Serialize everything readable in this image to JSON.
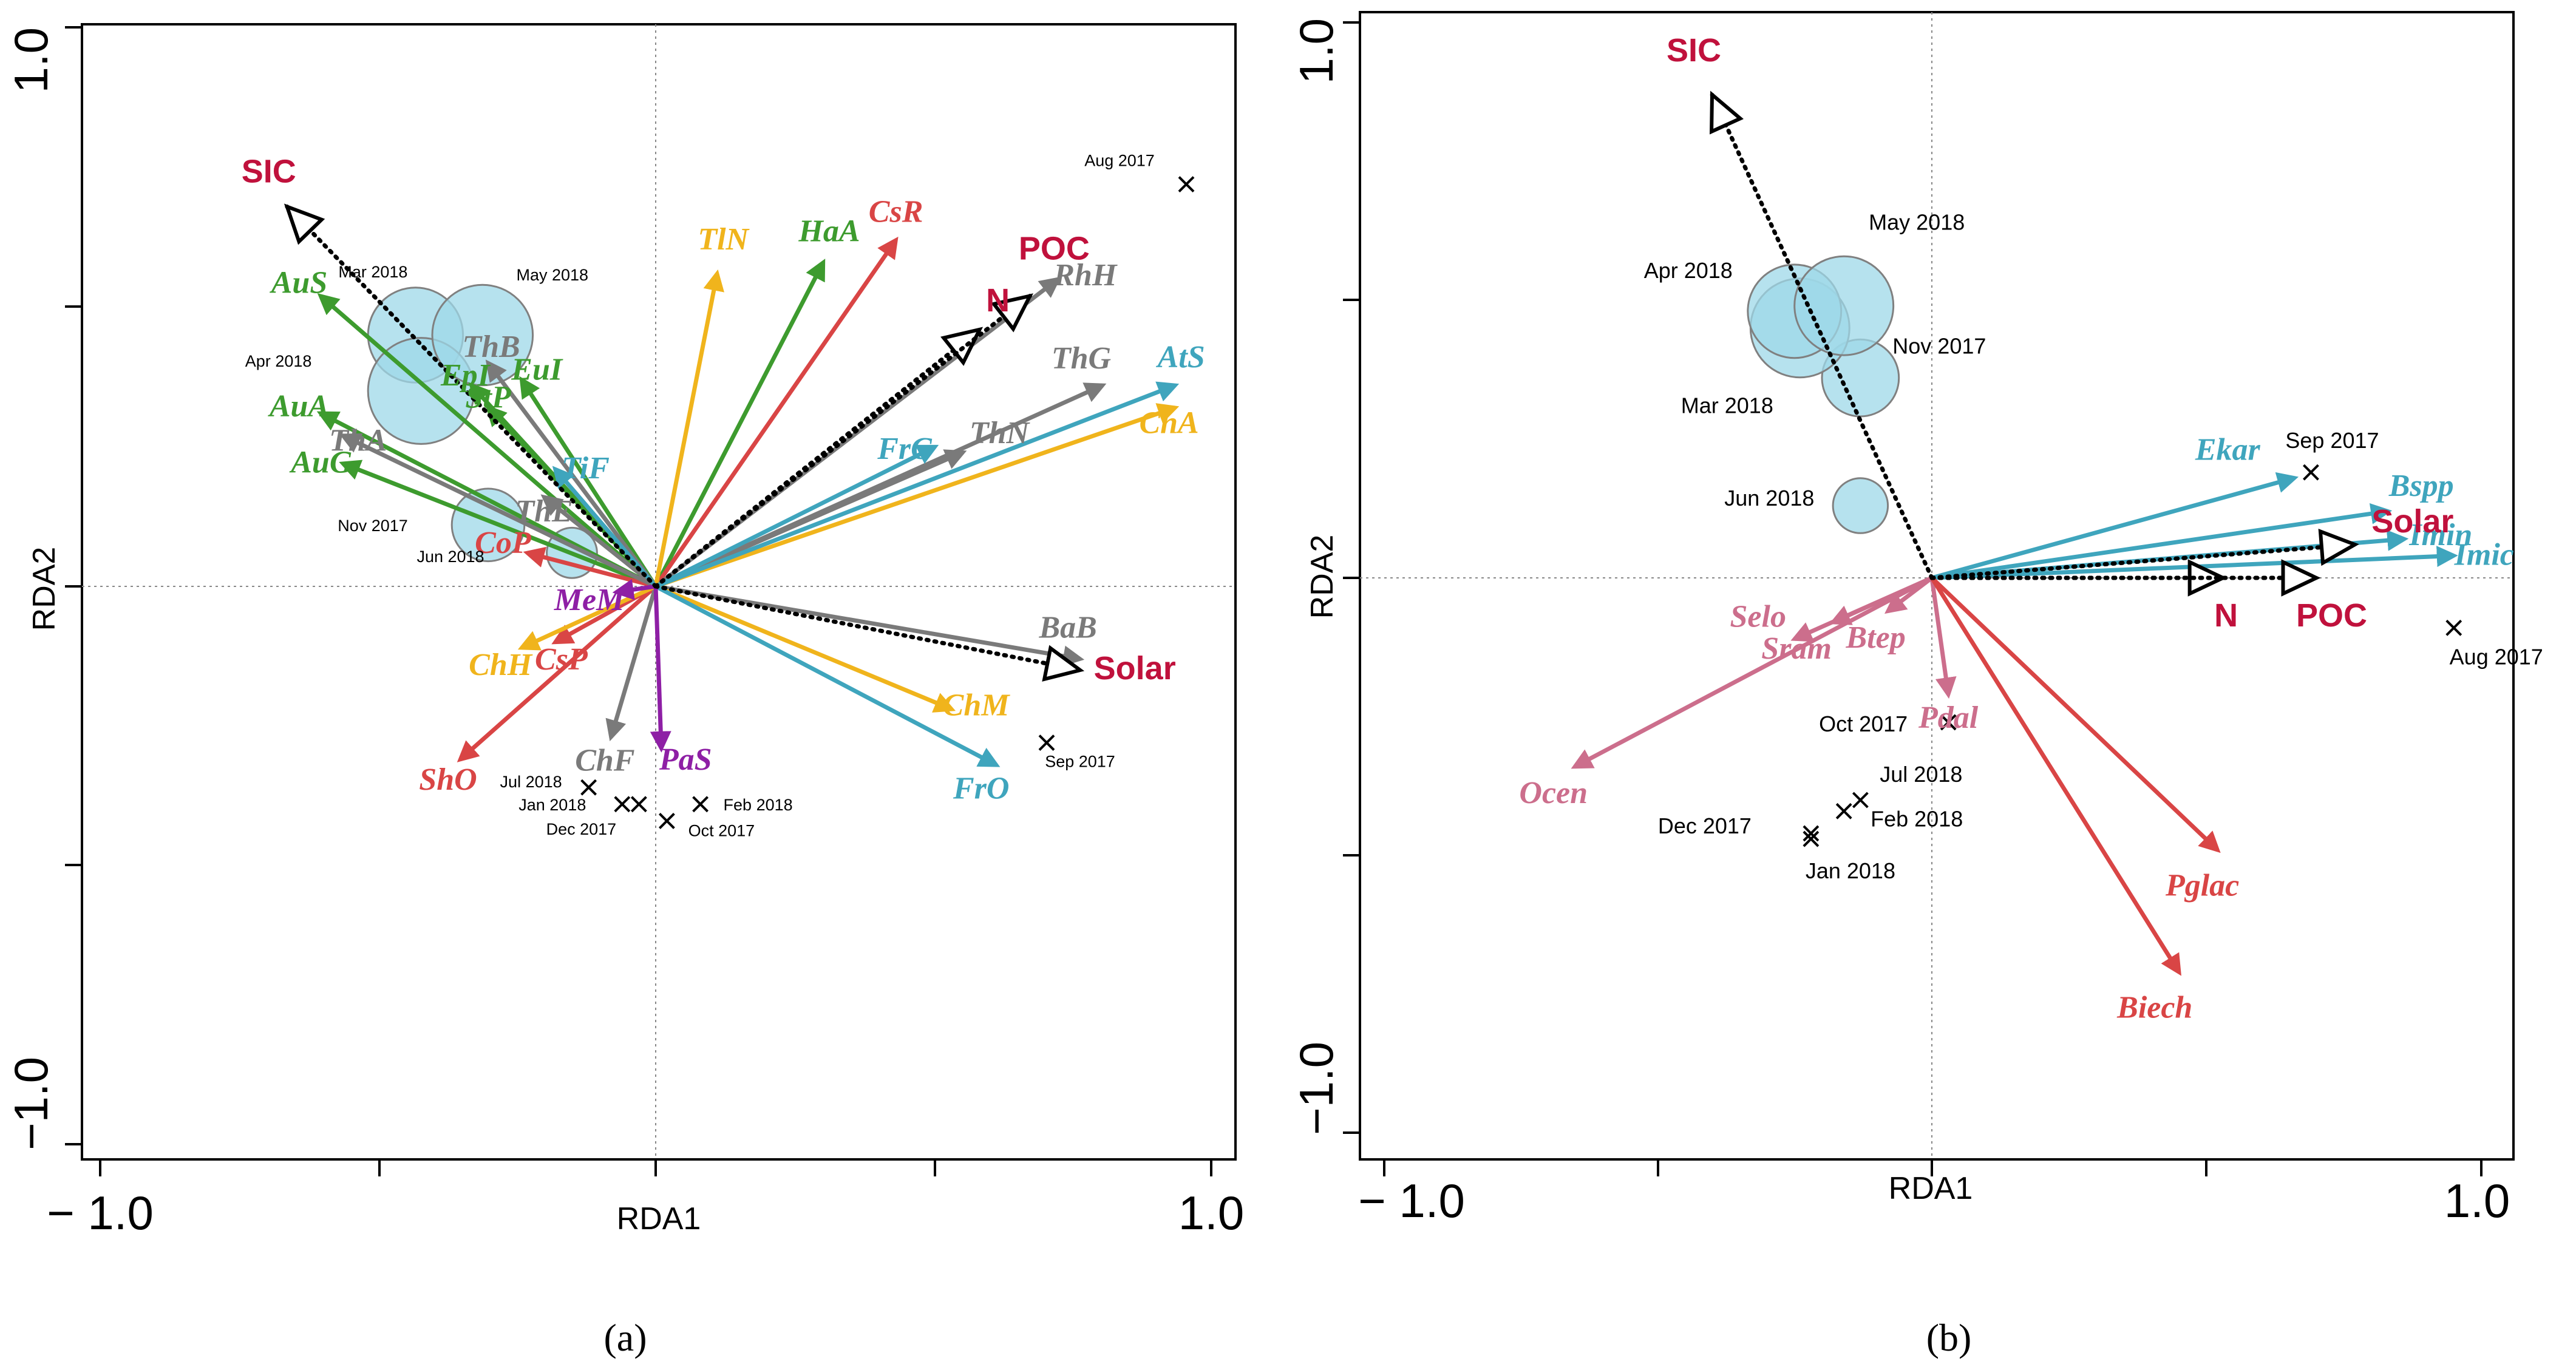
{
  "colors": {
    "green": "#3d9b2e",
    "red": "#d94545",
    "gray": "#7a7a7a",
    "yellow": "#f0b41c",
    "blue": "#3fa5bd",
    "purple": "#8e1fa5",
    "pink": "#cc6e8c",
    "env": "#c0113c",
    "circle_fill": "#9ed8e8",
    "circle_stroke": "#808080"
  },
  "chart_data": [
    {
      "type": "scatter",
      "title": "",
      "panel_label": "(a)",
      "xlabel": "RDA1",
      "ylabel": "RDA2",
      "xlim": [
        -1.0,
        1.0
      ],
      "ylim": [
        -1.0,
        1.0
      ],
      "x_tick_labels": [
        "− 1.0",
        "1.0"
      ],
      "y_tick_labels": [
        "1.0",
        "−1.0"
      ],
      "species_arrows": [
        {
          "name": "AuS",
          "x": -0.6,
          "y": 0.52,
          "group": "green"
        },
        {
          "name": "AuA",
          "x": -0.6,
          "y": 0.31,
          "group": "green"
        },
        {
          "name": "AuG",
          "x": -0.56,
          "y": 0.22,
          "group": "green"
        },
        {
          "name": "EpI",
          "x": -0.33,
          "y": 0.36,
          "group": "green"
        },
        {
          "name": "EuI",
          "x": -0.24,
          "y": 0.37,
          "group": "green"
        },
        {
          "name": "StP",
          "x": -0.3,
          "y": 0.32,
          "group": "green"
        },
        {
          "name": "HaA",
          "x": 0.3,
          "y": 0.58,
          "group": "green"
        },
        {
          "name": "CsR",
          "x": 0.43,
          "y": 0.62,
          "group": "red"
        },
        {
          "name": "CoP",
          "x": -0.23,
          "y": 0.06,
          "group": "red"
        },
        {
          "name": "CsP",
          "x": -0.18,
          "y": -0.1,
          "group": "red"
        },
        {
          "name": "ShO",
          "x": -0.35,
          "y": -0.31,
          "group": "red"
        },
        {
          "name": "ThB",
          "x": -0.3,
          "y": 0.4,
          "group": "gray"
        },
        {
          "name": "ThA",
          "x": -0.56,
          "y": 0.27,
          "group": "gray"
        },
        {
          "name": "ThE",
          "x": -0.2,
          "y": 0.16,
          "group": "gray"
        },
        {
          "name": "RhH",
          "x": 0.72,
          "y": 0.55,
          "group": "gray"
        },
        {
          "name": "ThN",
          "x": 0.55,
          "y": 0.24,
          "group": "gray"
        },
        {
          "name": "ThG",
          "x": 0.8,
          "y": 0.36,
          "group": "gray"
        },
        {
          "name": "BaB",
          "x": 0.76,
          "y": -0.13,
          "group": "gray"
        },
        {
          "name": "ChF",
          "x": -0.08,
          "y": -0.27,
          "group": "gray"
        },
        {
          "name": "TlN",
          "x": 0.11,
          "y": 0.56,
          "group": "yellow"
        },
        {
          "name": "ChA",
          "x": 0.93,
          "y": 0.32,
          "group": "yellow"
        },
        {
          "name": "ChH",
          "x": -0.24,
          "y": -0.11,
          "group": "yellow"
        },
        {
          "name": "ChM",
          "x": 0.53,
          "y": -0.22,
          "group": "yellow"
        },
        {
          "name": "AtS",
          "x": 0.93,
          "y": 0.36,
          "group": "blue"
        },
        {
          "name": "FrC",
          "x": 0.5,
          "y": 0.25,
          "group": "blue"
        },
        {
          "name": "FrO",
          "x": 0.61,
          "y": -0.32,
          "group": "blue"
        },
        {
          "name": "TiF",
          "x": -0.18,
          "y": 0.21,
          "group": "blue"
        },
        {
          "name": "MeM",
          "x": -0.07,
          "y": -0.01,
          "group": "purple"
        },
        {
          "name": "PaS",
          "x": 0.01,
          "y": -0.29,
          "group": "purple"
        }
      ],
      "env_vectors": [
        {
          "name": "SIC",
          "x": -0.66,
          "y": 0.68
        },
        {
          "name": "N",
          "x": 0.58,
          "y": 0.46
        },
        {
          "name": "POC",
          "x": 0.67,
          "y": 0.52
        },
        {
          "name": "Solar",
          "x": 0.76,
          "y": -0.15
        }
      ],
      "samples": [
        {
          "name": "Aug 2017",
          "x": 0.95,
          "y": 0.72,
          "marker": "x"
        },
        {
          "name": "Sep 2017",
          "x": 0.7,
          "y": -0.28,
          "marker": "x"
        },
        {
          "name": "Oct 2017",
          "x": 0.02,
          "y": -0.42,
          "marker": "x"
        },
        {
          "name": "Nov 2017",
          "x": -0.3,
          "y": 0.11,
          "marker": "circle",
          "size": 0.065
        },
        {
          "name": "Dec 2017",
          "x": -0.03,
          "y": -0.39,
          "marker": "x"
        },
        {
          "name": "Jan 2018",
          "x": -0.06,
          "y": -0.39,
          "marker": "x"
        },
        {
          "name": "Feb 2018",
          "x": 0.08,
          "y": -0.39,
          "marker": "x"
        },
        {
          "name": "Mar 2018",
          "x": -0.43,
          "y": 0.45,
          "marker": "circle",
          "size": 0.085
        },
        {
          "name": "Apr 2018",
          "x": -0.42,
          "y": 0.35,
          "marker": "circle",
          "size": 0.095
        },
        {
          "name": "May 2018",
          "x": -0.31,
          "y": 0.45,
          "marker": "circle",
          "size": 0.09
        },
        {
          "name": "Jun 2018",
          "x": -0.15,
          "y": 0.06,
          "marker": "circle",
          "size": 0.045
        },
        {
          "name": "Jul 2018",
          "x": -0.12,
          "y": -0.36,
          "marker": "x"
        }
      ]
    },
    {
      "type": "scatter",
      "title": "",
      "panel_label": "(b)",
      "xlabel": "RDA1",
      "ylabel": "RDA2",
      "xlim": [
        -1.0,
        1.0
      ],
      "ylim": [
        -1.0,
        1.0
      ],
      "x_tick_labels": [
        "− 1.0",
        "1.0"
      ],
      "y_tick_labels": [
        "1.0",
        "−1.0"
      ],
      "species_arrows": [
        {
          "name": "Ekar",
          "x": 0.66,
          "y": 0.18,
          "group": "blue"
        },
        {
          "name": "Bspp",
          "x": 0.83,
          "y": 0.12,
          "group": "blue"
        },
        {
          "name": "Imin",
          "x": 0.86,
          "y": 0.07,
          "group": "blue"
        },
        {
          "name": "Imic",
          "x": 0.95,
          "y": 0.04,
          "group": "blue"
        },
        {
          "name": "Selo",
          "x": -0.25,
          "y": -0.11,
          "group": "pink"
        },
        {
          "name": "Sram",
          "x": -0.18,
          "y": -0.08,
          "group": "pink"
        },
        {
          "name": "Btep",
          "x": -0.08,
          "y": -0.06,
          "group": "pink"
        },
        {
          "name": "Ocen",
          "x": -0.65,
          "y": -0.34,
          "group": "pink"
        },
        {
          "name": "Pdal",
          "x": 0.03,
          "y": -0.21,
          "group": "pink"
        },
        {
          "name": "Pglac",
          "x": 0.52,
          "y": -0.49,
          "group": "red"
        },
        {
          "name": "Biech",
          "x": 0.45,
          "y": -0.71,
          "group": "red"
        }
      ],
      "env_vectors": [
        {
          "name": "SIC",
          "x": -0.4,
          "y": 0.87
        },
        {
          "name": "Solar",
          "x": 0.77,
          "y": 0.06
        },
        {
          "name": "N",
          "x": 0.53,
          "y": 0.0
        },
        {
          "name": "POC",
          "x": 0.7,
          "y": 0.0
        }
      ],
      "samples": [
        {
          "name": "Aug 2017",
          "x": 0.95,
          "y": -0.09,
          "marker": "x"
        },
        {
          "name": "Sep 2017",
          "x": 0.69,
          "y": 0.19,
          "marker": "x"
        },
        {
          "name": "Oct 2017",
          "x": 0.03,
          "y": -0.26,
          "marker": "x"
        },
        {
          "name": "Nov 2017",
          "x": -0.13,
          "y": 0.36,
          "marker": "circle",
          "size": 0.07
        },
        {
          "name": "Dec 2017",
          "x": -0.22,
          "y": -0.46,
          "marker": "x"
        },
        {
          "name": "Jan 2018",
          "x": -0.22,
          "y": -0.47,
          "marker": "x"
        },
        {
          "name": "Feb 2018",
          "x": -0.16,
          "y": -0.42,
          "marker": "x"
        },
        {
          "name": "Mar 2018",
          "x": -0.24,
          "y": 0.45,
          "marker": "circle",
          "size": 0.09
        },
        {
          "name": "Apr 2018",
          "x": -0.25,
          "y": 0.48,
          "marker": "circle",
          "size": 0.085
        },
        {
          "name": "May 2018",
          "x": -0.16,
          "y": 0.49,
          "marker": "circle",
          "size": 0.09
        },
        {
          "name": "Jun 2018",
          "x": -0.13,
          "y": 0.13,
          "marker": "circle",
          "size": 0.05
        },
        {
          "name": "Jul 2018",
          "x": -0.13,
          "y": -0.4,
          "marker": "x"
        }
      ]
    }
  ]
}
